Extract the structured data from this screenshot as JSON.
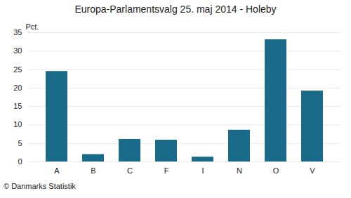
{
  "chart_data": {
    "type": "bar",
    "title": "Europa-Parlamentsvalg 25. maj 2014 - Holeby",
    "categories": [
      "A",
      "B",
      "C",
      "F",
      "I",
      "N",
      "O",
      "V"
    ],
    "values": [
      24.5,
      2.0,
      6.1,
      5.9,
      1.3,
      8.6,
      33.1,
      19.2
    ],
    "color": "#1a6b8a",
    "ylabel": "Pct.",
    "ylim": [
      0,
      35
    ],
    "yticks": [
      0,
      5,
      10,
      15,
      20,
      25,
      30,
      35
    ],
    "grid": true,
    "footer": "© Danmarks Statistik"
  }
}
